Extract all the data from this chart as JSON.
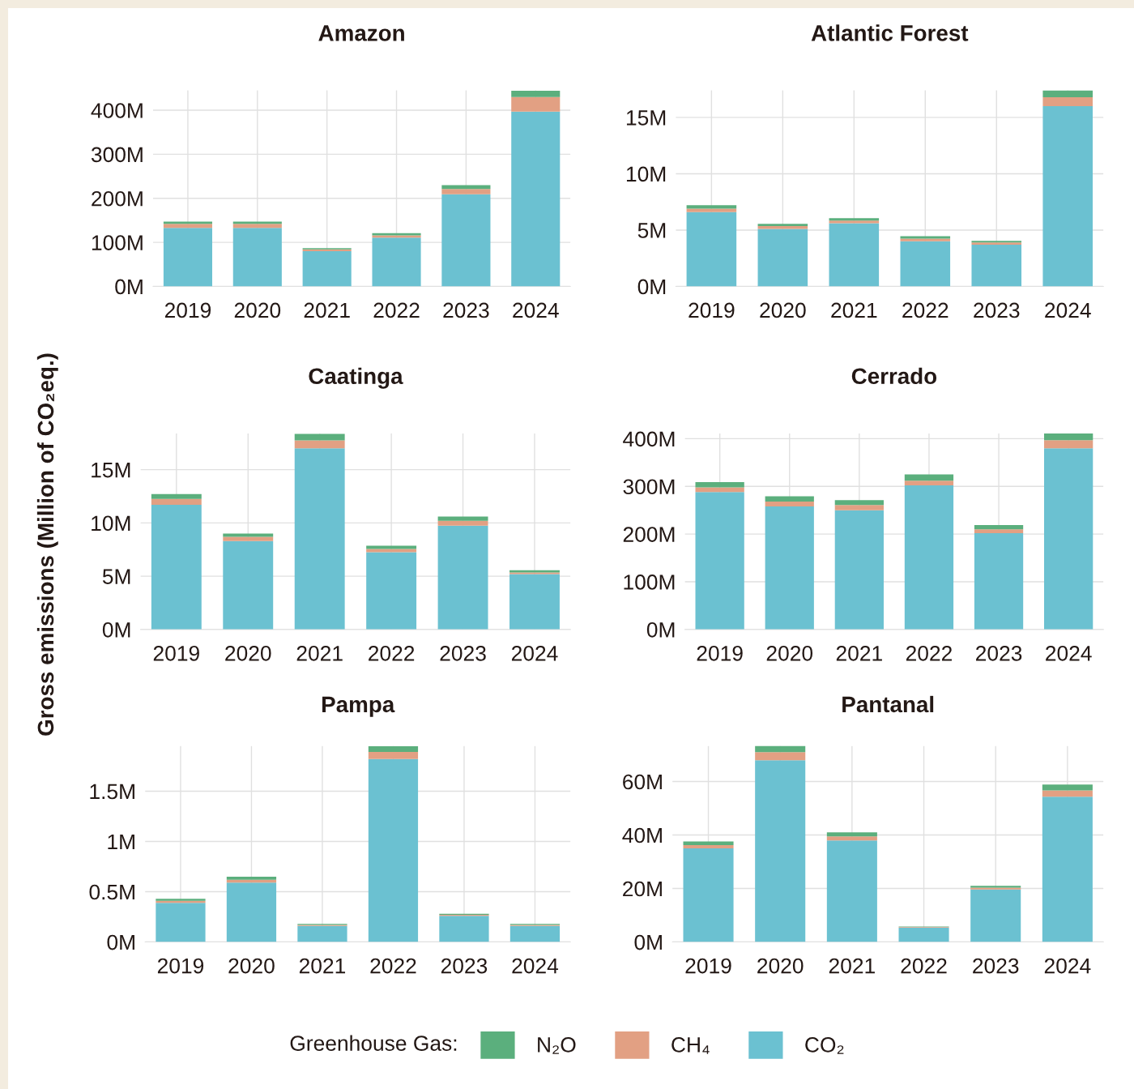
{
  "chart_data": [
    {
      "type": "bar",
      "title": "Amazon",
      "ylabel": "Gross emissions (Million of CO₂eq.)",
      "legend_title": "Greenhouse Gas:",
      "legend": "bottom",
      "stacked": true,
      "grid": true,
      "categories": [
        "2019",
        "2020",
        "2021",
        "2022",
        "2023",
        "2024"
      ],
      "series": [
        {
          "name": "CO₂",
          "color": "#6bc1d1",
          "values": [
            133,
            133,
            80,
            111,
            209,
            397
          ]
        },
        {
          "name": "CH₄",
          "color": "#e2a083",
          "values": [
            9,
            9,
            4,
            5,
            12,
            33
          ]
        },
        {
          "name": "N₂O",
          "color": "#5baf7d",
          "values": [
            5,
            5,
            3,
            5,
            9,
            14
          ]
        }
      ],
      "ylim": [
        0,
        445
      ],
      "yticks": [
        {
          "value": 0,
          "label": "0M"
        },
        {
          "value": 100,
          "label": "100M"
        },
        {
          "value": 200,
          "label": "200M"
        },
        {
          "value": 300,
          "label": "300M"
        },
        {
          "value": 400,
          "label": "400M"
        }
      ]
    },
    {
      "type": "bar",
      "title": "Atlantic Forest",
      "stacked": true,
      "grid": true,
      "categories": [
        "2019",
        "2020",
        "2021",
        "2022",
        "2023",
        "2024"
      ],
      "series": [
        {
          "color": "#6bc1d1",
          "values": [
            6.6,
            5.1,
            5.6,
            4.0,
            3.7,
            16.0
          ]
        },
        {
          "color": "#e2a083",
          "values": [
            0.3,
            0.25,
            0.25,
            0.25,
            0.2,
            0.8
          ]
        },
        {
          "color": "#5baf7d",
          "values": [
            0.3,
            0.2,
            0.2,
            0.2,
            0.15,
            0.6
          ]
        }
      ],
      "ylim": [
        0,
        17.4
      ],
      "yticks": [
        {
          "value": 0,
          "label": "0M"
        },
        {
          "value": 5,
          "label": "5M"
        },
        {
          "value": 10,
          "label": "10M"
        },
        {
          "value": 15,
          "label": "15M"
        }
      ]
    },
    {
      "type": "bar",
      "title": "Caatinga",
      "stacked": true,
      "grid": true,
      "categories": [
        "2019",
        "2020",
        "2021",
        "2022",
        "2023",
        "2024"
      ],
      "series": [
        {
          "color": "#6bc1d1",
          "values": [
            11.7,
            8.3,
            17.0,
            7.25,
            9.75,
            5.2
          ]
        },
        {
          "color": "#e2a083",
          "values": [
            0.55,
            0.4,
            0.75,
            0.3,
            0.45,
            0.15
          ]
        },
        {
          "color": "#5baf7d",
          "values": [
            0.45,
            0.3,
            0.6,
            0.3,
            0.4,
            0.2
          ]
        }
      ],
      "ylim": [
        0,
        18.4
      ],
      "yticks": [
        {
          "value": 0,
          "label": "0M"
        },
        {
          "value": 5,
          "label": "5M"
        },
        {
          "value": 10,
          "label": "10M"
        },
        {
          "value": 15,
          "label": "15M"
        }
      ]
    },
    {
      "type": "bar",
      "title": "Cerrado",
      "stacked": true,
      "grid": true,
      "categories": [
        "2019",
        "2020",
        "2021",
        "2022",
        "2023",
        "2024"
      ],
      "series": [
        {
          "color": "#6bc1d1",
          "values": [
            288,
            258,
            250,
            302,
            202,
            380
          ]
        },
        {
          "color": "#e2a083",
          "values": [
            10,
            10,
            11,
            10,
            8,
            17
          ]
        },
        {
          "color": "#5baf7d",
          "values": [
            11,
            11,
            10,
            13,
            9,
            14
          ]
        }
      ],
      "ylim": [
        0,
        411
      ],
      "yticks": [
        {
          "value": 0,
          "label": "0M"
        },
        {
          "value": 100,
          "label": "100M"
        },
        {
          "value": 200,
          "label": "200M"
        },
        {
          "value": 300,
          "label": "300M"
        },
        {
          "value": 400,
          "label": "400M"
        }
      ]
    },
    {
      "type": "bar",
      "title": "Pampa",
      "stacked": true,
      "grid": true,
      "categories": [
        "2019",
        "2020",
        "2021",
        "2022",
        "2023",
        "2024"
      ],
      "series": [
        {
          "color": "#6bc1d1",
          "values": [
            0.39,
            0.59,
            0.16,
            1.82,
            0.26,
            0.16
          ]
        },
        {
          "color": "#e2a083",
          "values": [
            0.02,
            0.03,
            0.01,
            0.07,
            0.01,
            0.01
          ]
        },
        {
          "color": "#5baf7d",
          "values": [
            0.02,
            0.03,
            0.01,
            0.06,
            0.01,
            0.01
          ]
        }
      ],
      "ylim": [
        0,
        1.95
      ],
      "yticks": [
        {
          "value": 0,
          "label": "0M"
        },
        {
          "value": 0.5,
          "label": "0.5M"
        },
        {
          "value": 1,
          "label": "1M"
        },
        {
          "value": 1.5,
          "label": "1.5M"
        }
      ]
    },
    {
      "type": "bar",
      "title": "Pantanal",
      "stacked": true,
      "grid": true,
      "categories": [
        "2019",
        "2020",
        "2021",
        "2022",
        "2023",
        "2024"
      ],
      "series": [
        {
          "color": "#6bc1d1",
          "values": [
            35,
            68,
            38,
            5.4,
            19.6,
            54.3
          ]
        },
        {
          "color": "#e2a083",
          "values": [
            1.2,
            3,
            1.5,
            0.2,
            0.7,
            2.4
          ]
        },
        {
          "color": "#5baf7d",
          "values": [
            1.4,
            2.5,
            1.5,
            0.2,
            0.7,
            2.2
          ]
        }
      ],
      "ylim": [
        0,
        73.3
      ],
      "yticks": [
        {
          "value": 0,
          "label": "0M"
        },
        {
          "value": 20,
          "label": "20M"
        },
        {
          "value": 40,
          "label": "40M"
        },
        {
          "value": 60,
          "label": "60M"
        }
      ]
    }
  ]
}
